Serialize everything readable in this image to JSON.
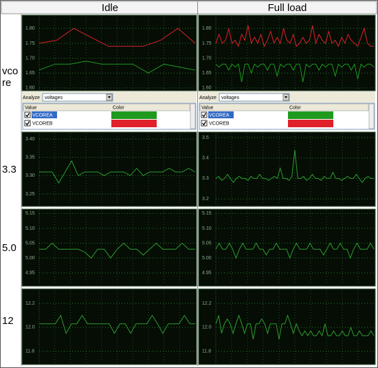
{
  "table": {
    "columns": [
      "Idle",
      "Full load"
    ],
    "rows": [
      "vcore",
      "3.3",
      "5.0",
      "12"
    ]
  },
  "panels": [
    {
      "analyze_label": "Analyze",
      "dropdown": "voltages",
      "columns": [
        "Value",
        "Color"
      ]
    },
    {
      "analyze_label": "Analyze",
      "dropdown": "voltages",
      "columns": [
        "Value",
        "Color"
      ]
    }
  ],
  "chart_data": [
    {
      "type": "line",
      "ylim": [
        1.595,
        1.84
      ],
      "yticks": [
        {
          "value": 1.6,
          "label": "1.60"
        },
        {
          "value": 1.65,
          "label": "1.65"
        },
        {
          "value": 1.7,
          "label": "1.70"
        },
        {
          "value": 1.75,
          "label": "1.75"
        },
        {
          "value": 1.8,
          "label": "1.80"
        }
      ],
      "series": [
        {
          "name": "VCOREA",
          "color": "#1f9a1f",
          "values": [
            1.66,
            1.68,
            1.68,
            1.69,
            1.68,
            1.68,
            1.68,
            1.65,
            1.68,
            1.67,
            1.66
          ]
        },
        {
          "name": "VCOREB",
          "color": "#e0202a",
          "values": [
            1.75,
            1.76,
            1.8,
            1.77,
            1.74,
            1.74,
            1.74,
            1.76,
            1.8,
            1.75
          ]
        }
      ]
    },
    {
      "type": "line",
      "ylim": [
        1.595,
        1.84
      ],
      "yticks": [
        {
          "value": 1.6,
          "label": "1.60"
        },
        {
          "value": 1.65,
          "label": "1.65"
        },
        {
          "value": 1.7,
          "label": "1.70"
        },
        {
          "value": 1.75,
          "label": "1.75"
        },
        {
          "value": 1.8,
          "label": "1.80"
        }
      ],
      "series": [
        {
          "name": "VCOREA",
          "color": "#1f9a1f",
          "values": [
            1.68,
            1.67,
            1.68,
            1.68,
            1.66,
            1.68,
            1.67,
            1.68,
            1.62,
            1.68,
            1.68,
            1.65,
            1.68,
            1.67,
            1.68,
            1.68,
            1.66,
            1.68,
            1.68,
            1.64,
            1.68,
            1.67,
            1.68,
            1.68,
            1.66,
            1.68,
            1.68,
            1.62,
            1.68,
            1.67,
            1.68,
            1.68,
            1.66,
            1.68,
            1.67,
            1.68,
            1.68,
            1.64,
            1.68,
            1.67,
            1.68,
            1.68,
            1.66,
            1.68,
            1.63,
            1.68,
            1.67,
            1.68,
            1.68,
            1.67
          ]
        },
        {
          "name": "VCOREB",
          "color": "#e0202a",
          "values": [
            1.75,
            1.78,
            1.75,
            1.76,
            1.8,
            1.75,
            1.76,
            1.74,
            1.78,
            1.76,
            1.81,
            1.75,
            1.77,
            1.75,
            1.78,
            1.74,
            1.76,
            1.79,
            1.75,
            1.77,
            1.75,
            1.8,
            1.76,
            1.75,
            1.78,
            1.74,
            1.75,
            1.77,
            1.75,
            1.76,
            1.81,
            1.75,
            1.78,
            1.76,
            1.75,
            1.79,
            1.75,
            1.76,
            1.74,
            1.77,
            1.75,
            1.78,
            1.76,
            1.75,
            1.74,
            1.77,
            1.8,
            1.75,
            1.74,
            1.74
          ]
        }
      ]
    },
    {
      "type": "line",
      "ylim": [
        3.22,
        3.415
      ],
      "yticks": [
        {
          "value": 3.25,
          "label": "3.25"
        },
        {
          "value": 3.3,
          "label": "3.30"
        },
        {
          "value": 3.35,
          "label": "3.35"
        },
        {
          "value": 3.4,
          "label": "3.40"
        }
      ],
      "series": [
        {
          "color": "#2e9e2e",
          "values": [
            3.31,
            3.31,
            3.31,
            3.28,
            3.31,
            3.34,
            3.3,
            3.31,
            3.31,
            3.31,
            3.3,
            3.31,
            3.31,
            3.31,
            3.3,
            3.32,
            3.3,
            3.31,
            3.31,
            3.31,
            3.32,
            3.31,
            3.31,
            3.32,
            3.31
          ]
        }
      ]
    },
    {
      "type": "line",
      "ylim": [
        3.17,
        3.52
      ],
      "yticks": [
        3.2,
        3.3,
        3.4,
        3.5
      ],
      "series": [
        {
          "color": "#2e9e2e",
          "values": [
            3.3,
            3.31,
            3.29,
            3.3,
            3.32,
            3.3,
            3.28,
            3.3,
            3.31,
            3.3,
            3.3,
            3.29,
            3.31,
            3.3,
            3.3,
            3.32,
            3.3,
            3.3,
            3.29,
            3.3,
            3.31,
            3.3,
            3.35,
            3.3,
            3.3,
            3.29,
            3.31,
            3.44,
            3.3,
            3.3,
            3.31,
            3.29,
            3.3,
            3.32,
            3.3,
            3.3,
            3.29,
            3.31,
            3.3,
            3.3,
            3.33,
            3.3,
            3.3,
            3.29,
            3.3,
            3.31,
            3.3,
            3.3,
            3.32,
            3.3,
            3.28,
            3.3,
            3.31,
            3.3,
            3.3
          ]
        }
      ]
    },
    {
      "type": "line",
      "ylim": [
        4.91,
        5.16
      ],
      "yticks": [
        {
          "value": 4.95,
          "label": "4.95"
        },
        {
          "value": 5.0,
          "label": "5.00"
        },
        {
          "value": 5.05,
          "label": "5.05"
        },
        {
          "value": 5.1,
          "label": "5.10"
        },
        {
          "value": 5.15,
          "label": "5.15"
        }
      ],
      "series": [
        {
          "color": "#2e9e2e",
          "values": [
            5.03,
            5.03,
            5.05,
            5.03,
            5.03,
            5.03,
            5.03,
            5.02,
            5.0,
            5.03,
            5.03,
            5.0,
            5.03,
            5.05,
            5.03,
            5.03,
            5.01,
            5.03,
            5.05,
            5.03,
            5.03,
            5.03,
            5.05,
            5.03,
            5.03
          ]
        }
      ]
    },
    {
      "type": "line",
      "ylim": [
        4.91,
        5.16
      ],
      "yticks": [
        {
          "value": 4.95,
          "label": "4.95"
        },
        {
          "value": 5.0,
          "label": "5.00"
        },
        {
          "value": 5.05,
          "label": "5.05"
        },
        {
          "value": 5.1,
          "label": "5.10"
        },
        {
          "value": 5.15,
          "label": "5.15"
        }
      ],
      "series": [
        {
          "color": "#2e9e2e",
          "values": [
            5.03,
            5.05,
            5.03,
            5.03,
            5.05,
            5.03,
            5.0,
            5.03,
            5.05,
            5.03,
            5.03,
            5.03,
            5.05,
            5.03,
            5.03,
            5.01,
            5.03,
            5.03,
            5.05,
            5.03,
            5.03,
            5.03,
            5.0,
            5.03,
            5.05,
            5.03,
            5.03,
            5.03,
            5.05,
            5.03,
            5.03,
            5.03,
            5.01,
            5.03,
            5.05,
            5.03,
            5.03,
            5.05,
            5.03,
            5.03,
            5.0,
            5.03,
            5.05,
            5.03,
            5.03,
            5.03,
            5.05,
            5.03
          ]
        }
      ]
    },
    {
      "type": "line",
      "ylim": [
        11.7,
        12.31
      ],
      "yticks": [
        11.8,
        {
          "value": 12.0,
          "label": "12.0"
        },
        12.2
      ],
      "series": [
        {
          "color": "#2e9e2e",
          "values": [
            12.03,
            12.03,
            12.03,
            12.03,
            12.1,
            11.95,
            12.03,
            12.03,
            12.1,
            12.03,
            12.03,
            12.03,
            12.03,
            12.03,
            11.95,
            12.03,
            12.03,
            11.95,
            12.03,
            12.03,
            12.03,
            12.1,
            12.03,
            11.95,
            12.03,
            12.03,
            12.03,
            12.1,
            12.03,
            12.03
          ]
        }
      ]
    },
    {
      "type": "line",
      "ylim": [
        11.7,
        12.31
      ],
      "yticks": [
        11.8,
        {
          "value": 12.0,
          "label": "12.0"
        },
        12.2
      ],
      "series": [
        {
          "color": "#2e9e2e",
          "values": [
            12.03,
            12.1,
            11.95,
            12.03,
            12.07,
            12.03,
            11.95,
            12.03,
            12.1,
            12.03,
            11.95,
            12.03,
            12.03,
            11.9,
            12.03,
            12.03,
            12.07,
            12.03,
            11.95,
            12.03,
            12.03,
            12.03,
            11.9,
            12.03,
            12.03,
            12.1,
            12.03,
            11.95,
            12.03,
            11.97,
            11.93,
            11.97,
            11.93,
            11.97,
            11.93,
            11.93,
            11.97,
            11.93,
            12.03,
            11.93,
            11.93,
            11.97,
            11.93,
            11.93,
            11.97,
            11.93,
            11.93,
            12.0,
            11.93,
            11.93,
            11.97,
            11.93,
            11.93,
            11.93,
            11.97,
            11.93
          ]
        }
      ]
    }
  ]
}
